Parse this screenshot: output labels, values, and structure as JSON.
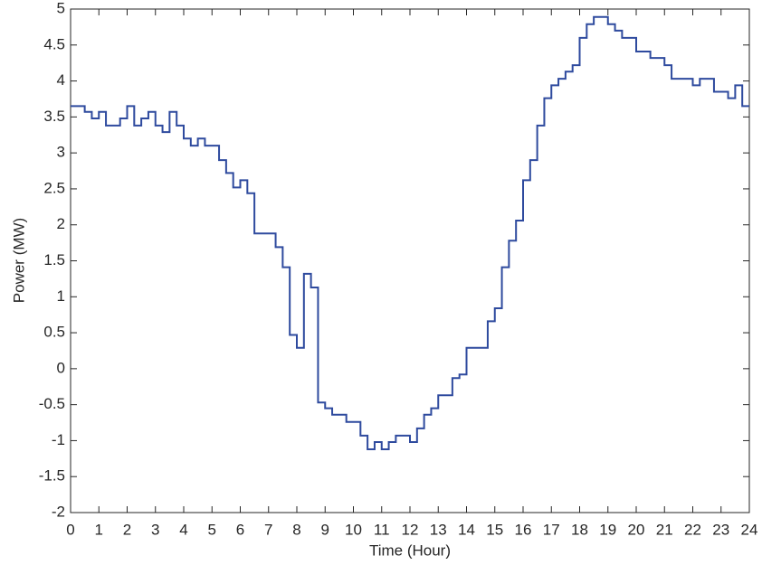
{
  "chart_data": {
    "type": "step",
    "xlabel": "Time (Hour)",
    "ylabel": "Power (MW)",
    "x": [
      0,
      0.5,
      0.75,
      1.0,
      1.25,
      1.75,
      2.0,
      2.25,
      2.5,
      2.75,
      3.0,
      3.25,
      3.5,
      3.75,
      4.0,
      4.25,
      4.5,
      4.75,
      5.25,
      5.5,
      5.75,
      6.0,
      6.25,
      6.5,
      7.25,
      7.5,
      7.75,
      8.0,
      8.25,
      8.5,
      8.75,
      9.0,
      9.25,
      9.75,
      10.25,
      10.5,
      10.75,
      11.0,
      11.25,
      11.5,
      12.0,
      12.25,
      12.5,
      12.75,
      13.0,
      13.5,
      13.75,
      14.0,
      14.75,
      15.0,
      15.25,
      15.5,
      15.75,
      16.0,
      16.25,
      16.5,
      16.75,
      17.0,
      17.25,
      17.5,
      17.75,
      18.0,
      18.25,
      18.5,
      19.0,
      19.25,
      19.5,
      20.0,
      20.5,
      21.0,
      21.25,
      22.0,
      22.25,
      22.75,
      23.25,
      23.5,
      23.75
    ],
    "series": [
      {
        "color": "#2e4a9e",
        "values": [
          3.65,
          3.57,
          3.48,
          3.57,
          3.38,
          3.48,
          3.65,
          3.38,
          3.48,
          3.57,
          3.38,
          3.29,
          3.57,
          3.38,
          3.2,
          3.1,
          3.2,
          3.1,
          2.9,
          2.72,
          2.52,
          2.62,
          2.44,
          1.88,
          1.69,
          1.41,
          0.47,
          0.29,
          1.32,
          1.13,
          -0.47,
          -0.55,
          -0.64,
          -0.74,
          -0.93,
          -1.12,
          -1.02,
          -1.12,
          -1.02,
          -0.93,
          -1.02,
          -0.83,
          -0.64,
          -0.55,
          -0.37,
          -0.13,
          -0.08,
          0.29,
          0.66,
          0.84,
          1.41,
          1.78,
          2.06,
          2.62,
          2.9,
          3.38,
          3.76,
          3.94,
          4.03,
          4.13,
          4.22,
          4.6,
          4.79,
          4.89,
          4.79,
          4.7,
          4.6,
          4.41,
          4.32,
          4.22,
          4.03,
          3.94,
          4.03,
          3.85,
          3.76,
          3.94,
          3.65
        ]
      }
    ],
    "xlim": [
      0,
      24
    ],
    "xticks": [
      0,
      1,
      2,
      3,
      4,
      5,
      6,
      7,
      8,
      9,
      10,
      11,
      12,
      13,
      14,
      15,
      16,
      17,
      18,
      19,
      20,
      21,
      22,
      23,
      24
    ],
    "ylim": [
      -2,
      5
    ],
    "yticks": [
      -2,
      -1.5,
      -1,
      -0.5,
      0,
      0.5,
      1,
      1.5,
      2,
      2.5,
      3,
      3.5,
      4,
      4.5,
      5
    ],
    "grid": false
  }
}
